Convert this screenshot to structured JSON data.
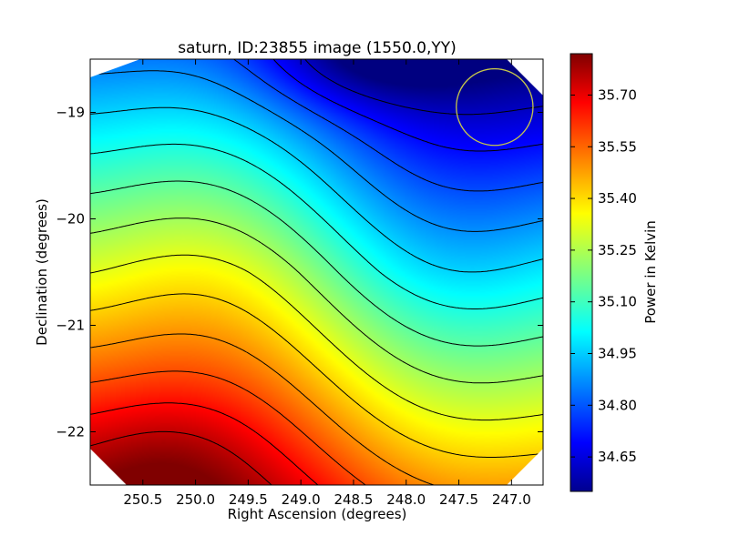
{
  "chart_data": {
    "type": "heatmap",
    "title": "saturn, ID:23855 image (1550.0,YY)",
    "xlabel": "Right Ascension (degrees)",
    "ylabel": "Declination (degrees)",
    "xlim": [
      251.0,
      246.7
    ],
    "ylim": [
      -22.5,
      -18.5
    ],
    "x_ticks": [
      250.5,
      250.0,
      249.5,
      249.0,
      248.5,
      248.0,
      247.5,
      247.0
    ],
    "x_tick_labels": [
      "250.5",
      "250.0",
      "249.5",
      "249.0",
      "248.5",
      "248.0",
      "247.5",
      "247.0"
    ],
    "y_ticks": [
      -19,
      -20,
      -21,
      -22
    ],
    "y_tick_labels": [
      "−19",
      "−20",
      "−21",
      "−22"
    ],
    "colorbar": {
      "label": "Power in Kelvin",
      "min": 34.55,
      "max": 35.82,
      "ticks": [
        34.65,
        34.8,
        34.95,
        35.1,
        35.25,
        35.4,
        35.55,
        35.7
      ],
      "tick_labels": [
        "34.65",
        "34.80",
        "34.95",
        "35.10",
        "35.25",
        "35.40",
        "35.55",
        "35.70"
      ],
      "colormap": "jet"
    },
    "contour_count": 14,
    "beam_marker": {
      "ra": 247.16,
      "dec": -18.95,
      "radius_deg": 0.36,
      "color": "#c8c84a"
    },
    "grid": false
  }
}
